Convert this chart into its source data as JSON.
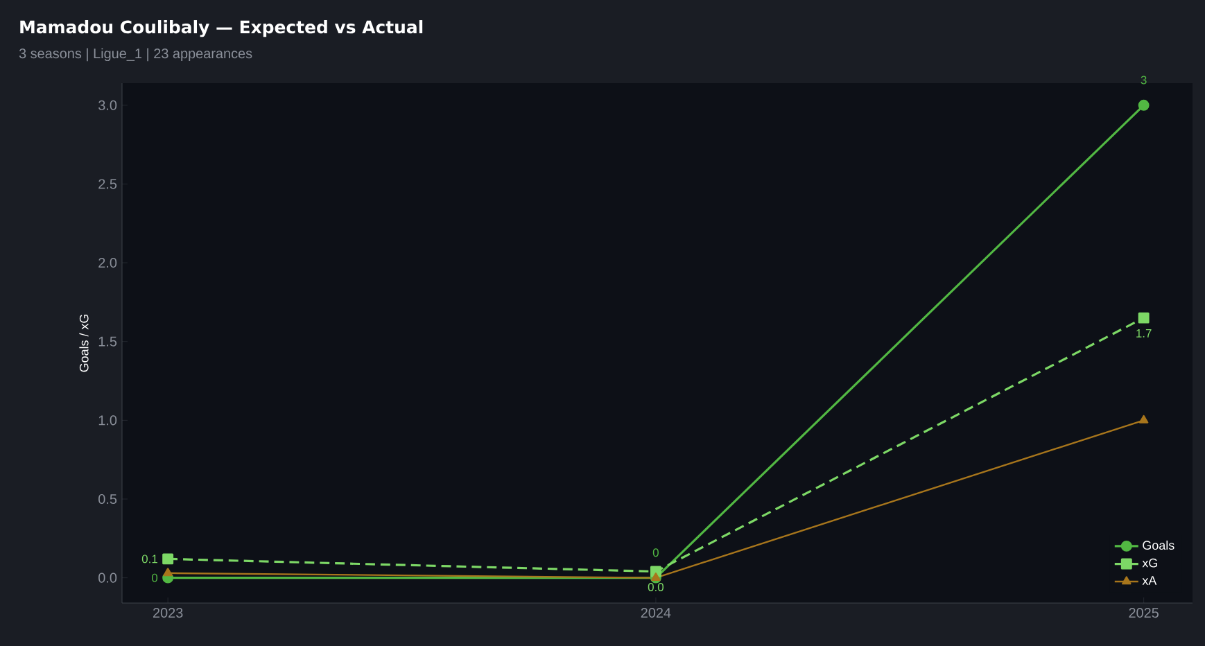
{
  "chart_data": {
    "type": "line",
    "title": "Mamadou Coulibaly — Expected vs Actual",
    "subtitle": "3 seasons | Ligue_1 | 23 appearances",
    "ylabel": "Goals / xG",
    "x": [
      2023,
      2024,
      2025
    ],
    "series": [
      {
        "name": "Goals",
        "color": "#52b843",
        "values": [
          0,
          0,
          3
        ],
        "marker": "circle",
        "line_style": "solid",
        "value_labels": [
          "0",
          "0",
          "3"
        ]
      },
      {
        "name": "xG",
        "color": "#7dd866",
        "values": [
          0.12,
          0.04,
          1.65
        ],
        "marker": "square",
        "line_style": "dashed",
        "value_labels": [
          "0.1",
          "0.0",
          "1.7"
        ]
      },
      {
        "name": "xA",
        "color": "#a8761c",
        "values": [
          0.03,
          0,
          1.0
        ],
        "marker": "triangle",
        "line_style": "solid"
      }
    ],
    "xlim": [
      2022.906,
      2025.1
    ],
    "ylim": [
      -0.16,
      3.14
    ],
    "xticks": [
      2023,
      2024,
      2025
    ],
    "yticks": [
      {
        "value": 0,
        "label": "0.0"
      },
      {
        "value": 0.5,
        "label": "0.5"
      },
      {
        "value": 1,
        "label": "1.0"
      },
      {
        "value": 1.5,
        "label": "1.5"
      },
      {
        "value": 2,
        "label": "2.0"
      },
      {
        "value": 2.5,
        "label": "2.5"
      },
      {
        "value": 3,
        "label": "3.0"
      }
    ],
    "grid": false,
    "legend": "bottom right"
  }
}
